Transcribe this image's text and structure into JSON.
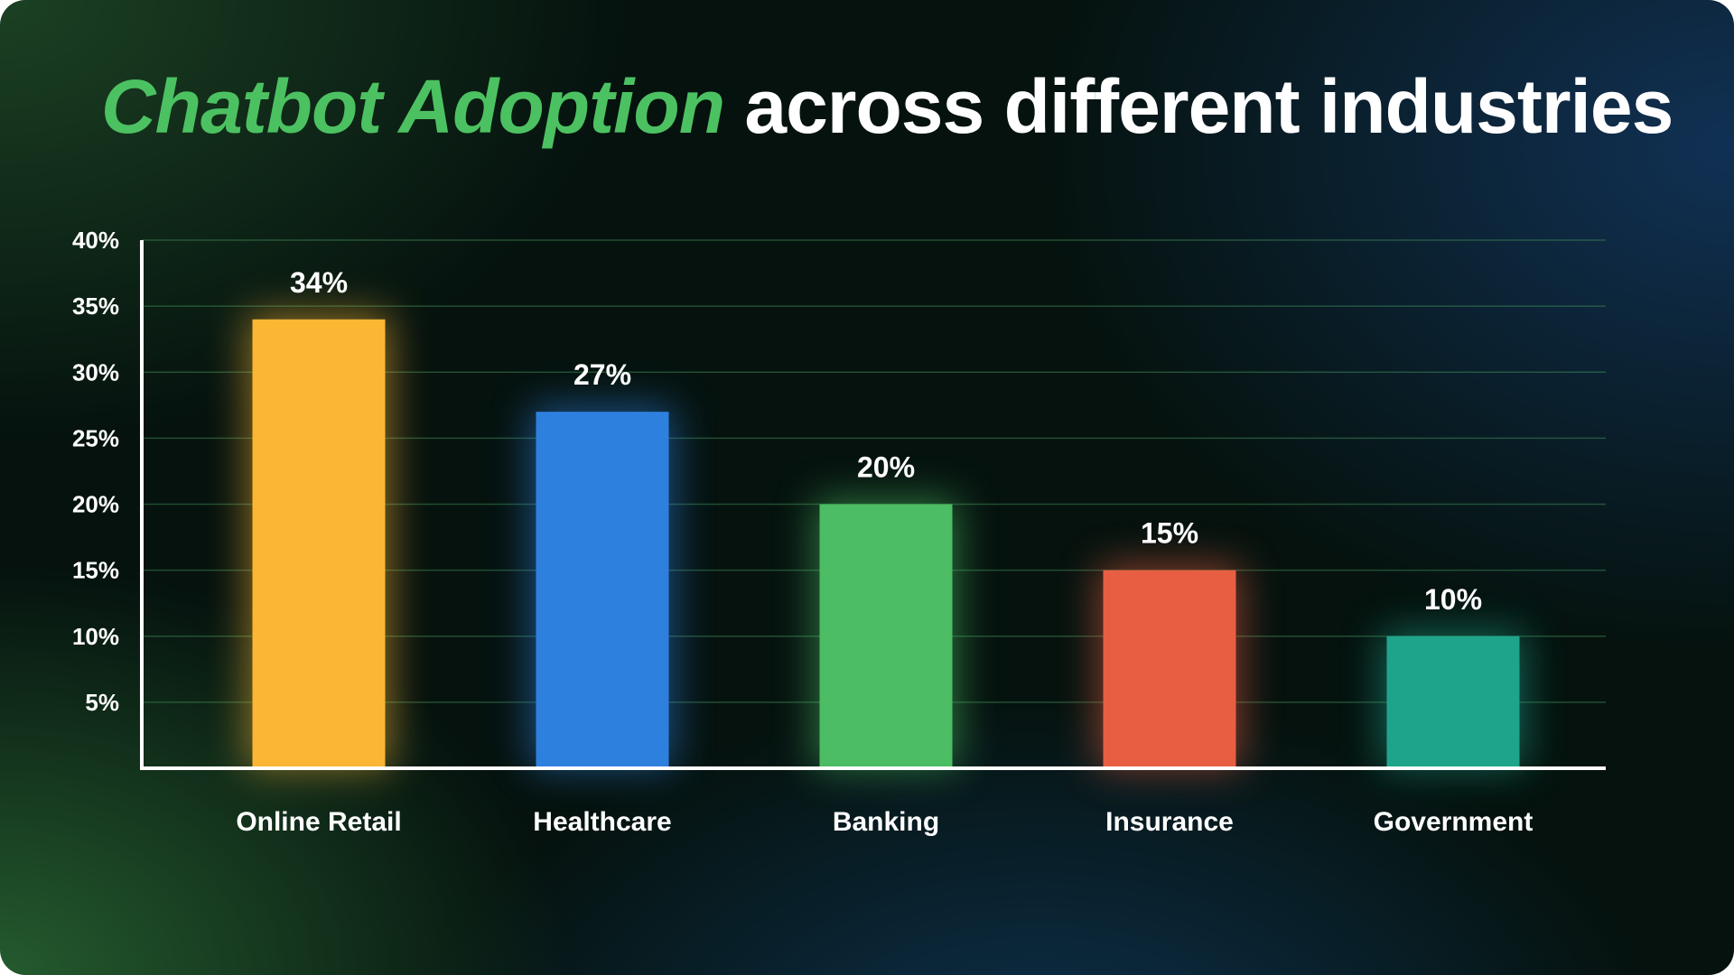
{
  "title": {
    "accent": "Chatbot Adoption",
    "rest": "across different industries"
  },
  "chart_data": {
    "type": "bar",
    "categories": [
      "Online Retail",
      "Healthcare",
      "Banking",
      "Insurance",
      "Government"
    ],
    "values": [
      34,
      27,
      20,
      15,
      10
    ],
    "data_labels": [
      "34%",
      "27%",
      "20%",
      "15%",
      "10%"
    ],
    "colors": [
      "#fbb634",
      "#2e80df",
      "#4cbd64",
      "#e85e42",
      "#1fa48c"
    ],
    "ylim": [
      0,
      40
    ],
    "yticks": [
      5,
      10,
      15,
      20,
      25,
      30,
      35,
      40
    ],
    "ytick_labels": [
      "5%",
      "10%",
      "15%",
      "20%",
      "25%",
      "30%",
      "35%",
      "40%"
    ],
    "grid": true,
    "xlabel": "",
    "ylabel": ""
  }
}
